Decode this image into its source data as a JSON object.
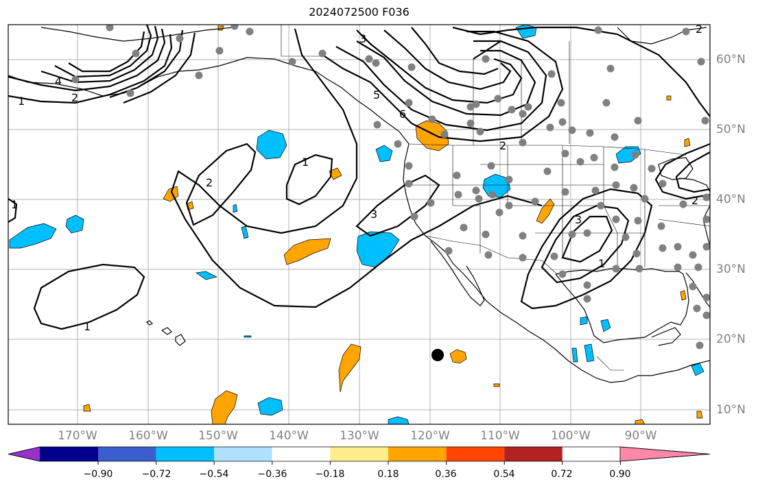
{
  "title": "2024072500 F036",
  "colors": {
    "pos_fill": "#ffa500",
    "neg_fill": "#00bfff",
    "contour": "#000000",
    "station": "#808080",
    "grid": "#b0b0b0",
    "marker": "#000000"
  },
  "map": {
    "lon_labels": [
      "170°W",
      "160°W",
      "150°W",
      "140°W",
      "130°W",
      "120°W",
      "110°W",
      "100°W",
      "90°W"
    ],
    "lat_labels": [
      "60°N",
      "50°N",
      "40°N",
      "30°N",
      "20°N",
      "10°N"
    ],
    "contour_labels": [
      "1",
      "1",
      "1",
      "1",
      "2",
      "2",
      "2",
      "2",
      "3",
      "3",
      "3",
      "4",
      "5",
      "6",
      "1",
      "2"
    ]
  },
  "colorbar": {
    "colors": [
      "#9932cc",
      "#00008b",
      "#3a5fcd",
      "#00bfff",
      "#b0e2ff",
      "#ffffff",
      "#ffec8b",
      "#ffa500",
      "#ff4500",
      "#b22222",
      "#ff88aa"
    ],
    "ticks": [
      "−0.90",
      "−0.72",
      "−0.54",
      "−0.36",
      "−0.18",
      "0.18",
      "0.36",
      "0.54",
      "0.72",
      "0.90"
    ]
  }
}
